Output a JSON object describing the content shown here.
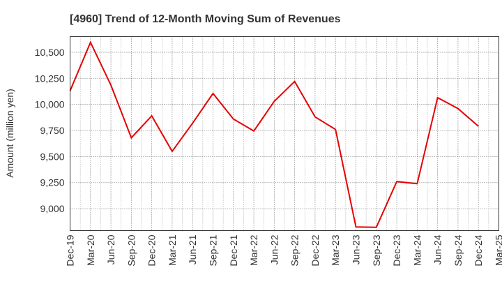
{
  "chart_data": {
    "type": "line",
    "title": "[4960]  Trend of 12-Month Moving Sum of Revenues",
    "xlabel": "",
    "ylabel": "Amount (million yen)",
    "ylim": [
      8790,
      10650
    ],
    "yticks": [
      9000,
      9250,
      9500,
      9750,
      10000,
      10250,
      10500
    ],
    "ytick_labels": [
      "9,000",
      "9,250",
      "9,500",
      "9,750",
      "10,000",
      "10,250",
      "10,500"
    ],
    "x": [
      "Dec-19",
      "Mar-20",
      "Jun-20",
      "Sep-20",
      "Dec-20",
      "Mar-21",
      "Jun-21",
      "Sep-21",
      "Dec-21",
      "Mar-22",
      "Jun-22",
      "Sep-22",
      "Dec-22",
      "Mar-23",
      "Jun-23",
      "Sep-23",
      "Dec-23",
      "Mar-24",
      "Jun-24",
      "Sep-24",
      "Dec-24",
      "Mar-25"
    ],
    "grid": true,
    "series": [
      {
        "color": "#e60000",
        "values": [
          10130,
          10595,
          10185,
          9680,
          9890,
          9550,
          9820,
          10105,
          9860,
          9745,
          10030,
          10220,
          9880,
          9760,
          8825,
          8822,
          9260,
          9240,
          10065,
          9960,
          9790,
          null
        ]
      }
    ]
  }
}
